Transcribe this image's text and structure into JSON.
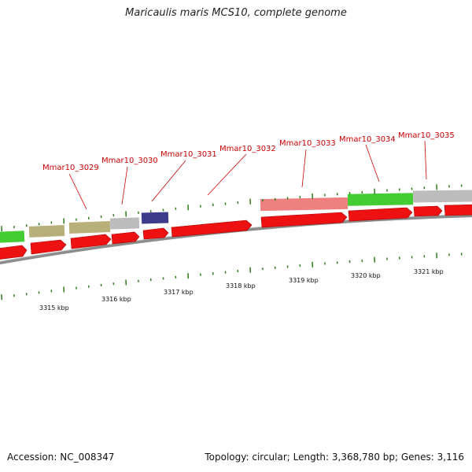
{
  "title": "Maricaulis maris MCS10, complete genome",
  "footer": {
    "accession": "Accession: NC_008347",
    "stats": "Topology: circular; Length: 3,368,780 bp; Genes: 3,116"
  },
  "colors": {
    "gene_label": "#cc0000",
    "cds_arrow": "#ee1111",
    "backbone": "#8c8c8c",
    "tick": "#2e7d1a",
    "feature_green": "#44cc33",
    "feature_olive": "#b8b07a",
    "feature_grey": "#bcbcbc",
    "feature_navy": "#3d3b8c",
    "feature_pink": "#ee8080"
  },
  "gene_labels": [
    "Mmar10_3029",
    "Mmar10_3030",
    "Mmar10_3031",
    "Mmar10_3032",
    "Mmar10_3033",
    "Mmar10_3034",
    "Mmar10_3035"
  ],
  "kbp_labels": [
    "3315 kbp",
    "3316 kbp",
    "3317 kbp",
    "3318 kbp",
    "3319 kbp",
    "3320 kbp",
    "3321 kbp"
  ],
  "feature_track": [
    {
      "color": "feature_green"
    },
    {
      "color": "feature_olive"
    },
    {
      "color": "feature_olive"
    },
    {
      "color": "feature_grey"
    },
    {
      "color": "feature_navy"
    },
    {
      "color": "feature_pink"
    },
    {
      "color": "feature_green"
    },
    {
      "color": "feature_grey"
    }
  ],
  "cds_track_count": 10
}
